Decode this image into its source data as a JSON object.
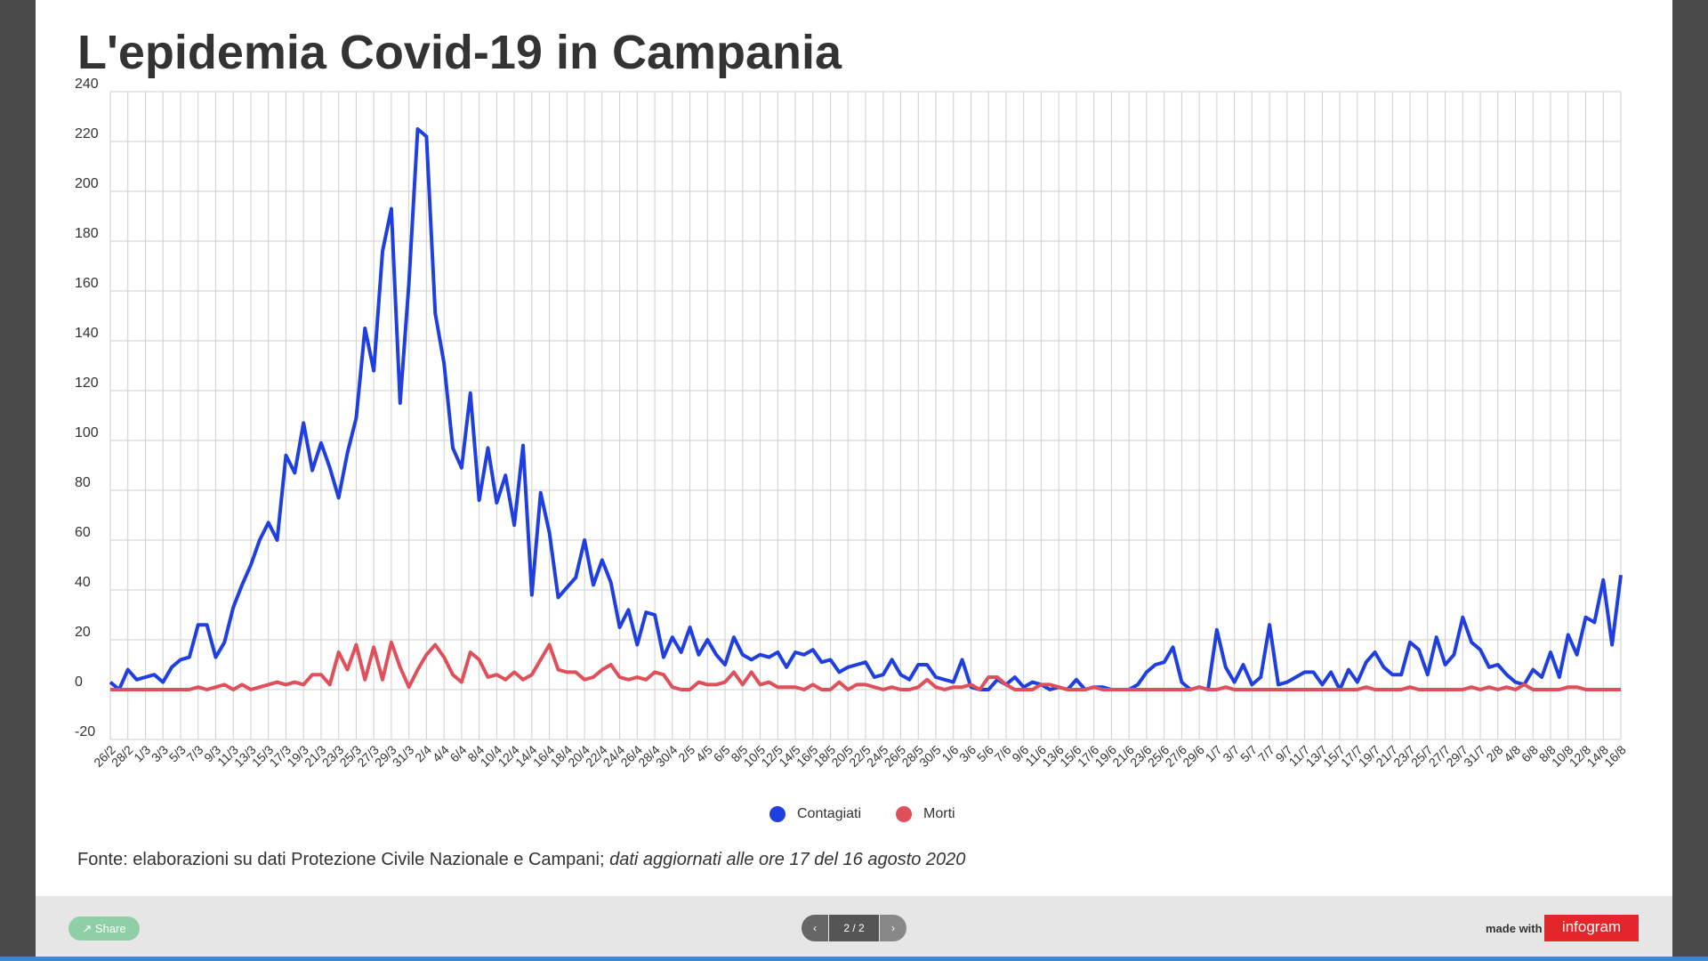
{
  "chart_data": {
    "type": "line",
    "title": "L'epidemia Covid-19 in Campania",
    "categories": [
      "26/2",
      null,
      "28/2",
      null,
      "1/3",
      null,
      "3/3",
      null,
      "5/3",
      null,
      "7/3",
      null,
      "9/3",
      null,
      "11/3",
      null,
      "13/3",
      null,
      "15/3",
      null,
      "17/3",
      null,
      "19/3",
      null,
      "21/3",
      null,
      "23/3",
      null,
      "25/3",
      null,
      "27/3",
      null,
      "29/3",
      null,
      "31/3",
      null,
      "2/4",
      null,
      "4/4",
      null,
      "6/4",
      null,
      "8/4",
      null,
      "10/4",
      null,
      "12/4",
      null,
      "14/4",
      null,
      "16/4",
      null,
      "18/4",
      null,
      "20/4",
      null,
      "22/4",
      null,
      "24/4",
      null,
      "26/4",
      null,
      "28/4",
      null,
      "30/4",
      null,
      "2/5",
      null,
      "4/5",
      null,
      "6/5",
      null,
      "8/5",
      null,
      "10/5",
      null,
      "12/5",
      null,
      "14/5",
      null,
      "16/5",
      null,
      "18/5",
      null,
      "20/5",
      null,
      "22/5",
      null,
      "24/5",
      null,
      "26/5",
      null,
      "28/5",
      null,
      "30/5",
      null,
      "1/6",
      null,
      "3/6",
      null,
      "5/6",
      null,
      "7/6",
      null,
      "9/6",
      null,
      "11/6",
      null,
      "13/6",
      null,
      "15/6",
      null,
      "17/6",
      null,
      "19/6",
      null,
      "21/6",
      null,
      "23/6",
      null,
      "25/6",
      null,
      "27/6",
      null,
      "29/6",
      null,
      "1/7",
      null,
      "3/7",
      null,
      "5/7",
      null,
      "7/7",
      null,
      "9/7",
      null,
      "11/7",
      null,
      "13/7",
      null,
      "15/7",
      null,
      "17/7",
      null,
      "19/7",
      null,
      "21/7",
      null,
      "23/7",
      null,
      "25/7",
      null,
      "27/7",
      null,
      "29/7",
      null,
      "31/7",
      null,
      "2/8",
      null,
      "4/8",
      null,
      "6/8",
      null,
      "8/8",
      null,
      "10/8",
      null,
      "12/8",
      null,
      "14/8",
      null,
      "16/8"
    ],
    "series": [
      {
        "name": "Contagiati",
        "color": "#1f3fe0",
        "values": [
          3,
          0,
          8,
          4,
          5,
          6,
          3,
          9,
          12,
          13,
          26,
          26,
          13,
          19,
          33,
          42,
          50,
          60,
          67,
          60,
          94,
          87,
          107,
          88,
          99,
          89,
          77,
          95,
          109,
          145,
          128,
          176,
          193,
          115,
          163,
          225,
          222,
          151,
          131,
          97,
          89,
          119,
          76,
          97,
          75,
          86,
          66,
          98,
          38,
          79,
          63,
          37,
          41,
          45,
          60,
          42,
          52,
          43,
          25,
          32,
          18,
          31,
          30,
          13,
          21,
          15,
          25,
          14,
          20,
          14,
          10,
          21,
          14,
          12,
          14,
          13,
          15,
          9,
          15,
          14,
          16,
          11,
          12,
          7,
          9,
          10,
          11,
          5,
          6,
          12,
          6,
          4,
          10,
          10,
          5,
          4,
          3,
          12,
          1,
          0,
          0,
          4,
          2,
          5,
          1,
          3,
          2,
          0,
          1,
          0,
          4,
          0,
          1,
          1,
          0,
          0,
          0,
          2,
          7,
          10,
          11,
          17,
          3,
          0,
          1,
          0,
          24,
          9,
          3,
          10,
          2,
          5,
          26,
          2,
          3,
          5,
          7,
          7,
          2,
          7,
          0,
          8,
          3,
          11,
          15,
          9,
          6,
          6,
          19,
          16,
          6,
          21,
          10,
          14,
          29,
          19,
          16,
          9,
          10,
          6,
          3,
          2,
          8,
          5,
          15,
          5,
          22,
          14,
          29,
          27,
          44,
          18,
          46
        ]
      },
      {
        "name": "Morti",
        "color": "#e0505a",
        "values": [
          0,
          0,
          0,
          0,
          0,
          0,
          0,
          0,
          0,
          0,
          1,
          0,
          1,
          2,
          0,
          2,
          0,
          1,
          2,
          3,
          2,
          3,
          2,
          6,
          6,
          2,
          15,
          8,
          18,
          4,
          17,
          4,
          19,
          9,
          1,
          8,
          14,
          18,
          13,
          6,
          3,
          15,
          12,
          5,
          6,
          4,
          7,
          4,
          6,
          12,
          18,
          8,
          7,
          7,
          4,
          5,
          8,
          10,
          5,
          4,
          5,
          4,
          7,
          6,
          1,
          0,
          0,
          3,
          2,
          2,
          3,
          7,
          2,
          7,
          2,
          3,
          1,
          1,
          1,
          0,
          2,
          0,
          0,
          3,
          0,
          2,
          2,
          1,
          0,
          1,
          0,
          0,
          1,
          4,
          1,
          0,
          1,
          1,
          2,
          0,
          5,
          5,
          2,
          0,
          0,
          0,
          2,
          2,
          1,
          0,
          0,
          0,
          1,
          0,
          0,
          0,
          0,
          0,
          0,
          0,
          0,
          0,
          0,
          0,
          1,
          0,
          0,
          1,
          0,
          0,
          0,
          0,
          0,
          0,
          0,
          0,
          0,
          0,
          0,
          0,
          0,
          0,
          0,
          1,
          0,
          0,
          0,
          0,
          1,
          0,
          0,
          0,
          0,
          0,
          0,
          1,
          0,
          1,
          0,
          1,
          0,
          2,
          0,
          0,
          0,
          0,
          1,
          1,
          0,
          0,
          0,
          0,
          0
        ]
      }
    ],
    "ylim": [
      -20,
      240
    ],
    "yticks": [
      -20,
      0,
      20,
      40,
      60,
      80,
      100,
      120,
      140,
      160,
      180,
      200,
      220,
      240
    ],
    "grid": true,
    "legend": "bottom",
    "source": "Fonte: elaborazioni su dati Protezione Civile Nazionale e Campani;",
    "source_note": "dati aggiornati alle ore 17 del 16 agosto 2020"
  },
  "ui": {
    "share": "Share",
    "pager": "2 / 2",
    "made_with": "made with",
    "brand": "infogram"
  }
}
